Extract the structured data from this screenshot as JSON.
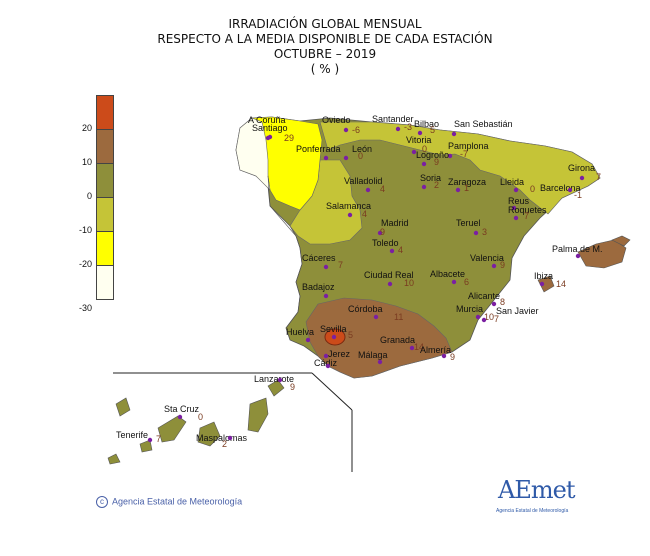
{
  "header": {
    "line1": "IRRADIACIÓN GLOBAL MENSUAL",
    "line2": "RESPECTO A LA MEDIA DISPONIBLE DE CADA ESTACIÓN",
    "line3": "OCTUBRE   – 2019",
    "line4": "( % )"
  },
  "legend": {
    "classes": [
      {
        "label": "",
        "color": "#cc4b1a"
      },
      {
        "label": "20",
        "color": "#9c6a3e"
      },
      {
        "label": "10",
        "color": "#8e8f3a"
      },
      {
        "label": "0",
        "color": "#c5c437"
      },
      {
        "label": "-10",
        "color": "#ffff00"
      },
      {
        "label": "-20",
        "color": "#fffff0"
      },
      {
        "label": "-30",
        "color": ""
      }
    ]
  },
  "colors": {
    "very_high": "#cc4b1a",
    "high": "#9c6a3e",
    "mid_high": "#8e8f3a",
    "mid_low": "#c5c437",
    "low": "#ffff00",
    "very_low": "#fffff0",
    "station_dot": "#7b1fa2",
    "value_text": "#7a3b20"
  },
  "stations": [
    {
      "name": "A Coruña",
      "value": ""
    },
    {
      "name": "Santiago",
      "value": "29"
    },
    {
      "name": "Oviedo",
      "value": "-6"
    },
    {
      "name": "Santander",
      "value": "-3"
    },
    {
      "name": "Bilbao",
      "value": "5"
    },
    {
      "name": "San Sebastián",
      "value": ""
    },
    {
      "name": "Ponferrada",
      "value": ""
    },
    {
      "name": "León",
      "value": "0"
    },
    {
      "name": "Vitoria",
      "value": "0"
    },
    {
      "name": "Pamplona",
      "value": "-7"
    },
    {
      "name": "Logroño",
      "value": "9"
    },
    {
      "name": "Soria",
      "value": "2"
    },
    {
      "name": "Zaragoza",
      "value": "1"
    },
    {
      "name": "Lleida",
      "value": "0"
    },
    {
      "name": "Girona",
      "value": "7"
    },
    {
      "name": "Barcelona",
      "value": "-1"
    },
    {
      "name": "Valladolid",
      "value": "4"
    },
    {
      "name": "Reus",
      "value": ""
    },
    {
      "name": "Roquetes",
      "value": "7"
    },
    {
      "name": "Salamanca",
      "value": "4"
    },
    {
      "name": "Madrid",
      "value": "9"
    },
    {
      "name": "Teruel",
      "value": "3"
    },
    {
      "name": "Palma de M.",
      "value": ""
    },
    {
      "name": "Toledo",
      "value": "4"
    },
    {
      "name": "Valencia",
      "value": "9"
    },
    {
      "name": "Ibiza",
      "value": "14"
    },
    {
      "name": "Cáceres",
      "value": "7"
    },
    {
      "name": "Ciudad Real",
      "value": "10"
    },
    {
      "name": "Albacete",
      "value": "6"
    },
    {
      "name": "Badajoz",
      "value": ""
    },
    {
      "name": "Alicante",
      "value": "8"
    },
    {
      "name": "Córdoba",
      "value": "11"
    },
    {
      "name": "Murcia",
      "value": "10"
    },
    {
      "name": "San Javier",
      "value": "7"
    },
    {
      "name": "Huelva",
      "value": ""
    },
    {
      "name": "Sevilla",
      "value": "5"
    },
    {
      "name": "Granada",
      "value": "14"
    },
    {
      "name": "Almería",
      "value": "9"
    },
    {
      "name": "Jerez",
      "value": ""
    },
    {
      "name": "Cádiz",
      "value": ""
    },
    {
      "name": "Málaga",
      "value": ""
    },
    {
      "name": "Lanzarote",
      "value": "9"
    },
    {
      "name": "Sta Cruz",
      "value": "0"
    },
    {
      "name": "Tenerife",
      "value": "7"
    },
    {
      "name": "Maspalomas",
      "value": "2"
    }
  ],
  "footer": {
    "copyright": "Agencia Estatal de Meteorología",
    "logo_text": "AEmet",
    "logo_sub": "Agencia Estatal de Meteorología"
  }
}
